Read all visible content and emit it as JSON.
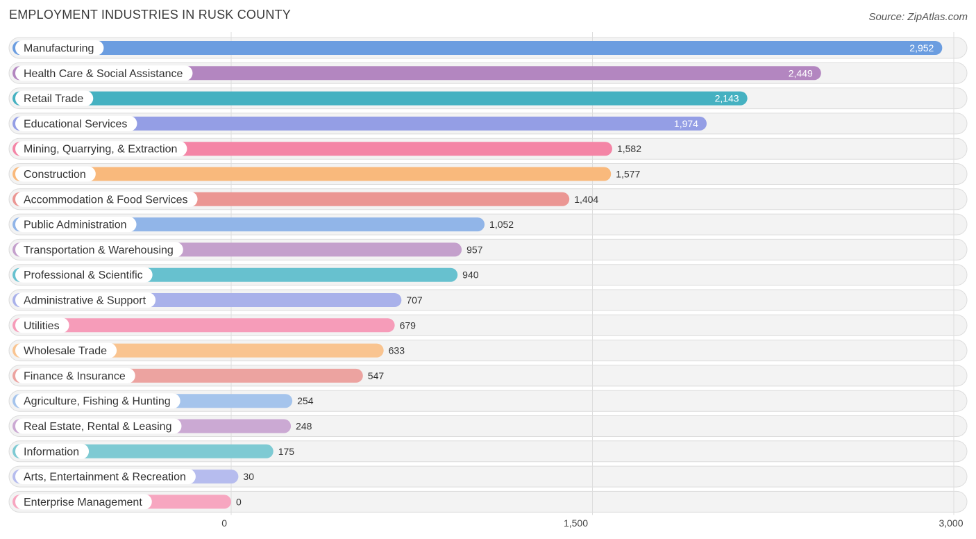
{
  "header": {
    "title": "EMPLOYMENT INDUSTRIES IN RUSK COUNTY",
    "source": "Source: ZipAtlas.com"
  },
  "chart_data": {
    "type": "bar",
    "orientation": "horizontal",
    "title": "EMPLOYMENT INDUSTRIES IN RUSK COUNTY",
    "xlabel": "",
    "ylabel": "",
    "xlim": [
      0,
      3000
    ],
    "ticks": [
      {
        "value": 0,
        "label": "0"
      },
      {
        "value": 1500,
        "label": "1,500"
      },
      {
        "value": 3000,
        "label": "3,000"
      }
    ],
    "grid": true,
    "categories": [
      "Manufacturing",
      "Health Care & Social Assistance",
      "Retail Trade",
      "Educational Services",
      "Mining, Quarrying, & Extraction",
      "Construction",
      "Accommodation & Food Services",
      "Public Administration",
      "Transportation & Warehousing",
      "Professional & Scientific",
      "Administrative & Support",
      "Utilities",
      "Wholesale Trade",
      "Finance & Insurance",
      "Agriculture, Fishing & Hunting",
      "Real Estate, Rental & Leasing",
      "Information",
      "Arts, Entertainment & Recreation",
      "Enterprise Management"
    ],
    "values": [
      2952,
      2449,
      2143,
      1974,
      1582,
      1577,
      1404,
      1052,
      957,
      940,
      707,
      679,
      633,
      547,
      254,
      248,
      175,
      30,
      0
    ],
    "value_labels": [
      "2,952",
      "2,449",
      "2,143",
      "1,974",
      "1,582",
      "1,577",
      "1,404",
      "1,052",
      "957",
      "940",
      "707",
      "679",
      "633",
      "547",
      "254",
      "248",
      "175",
      "30",
      "0"
    ],
    "colors": [
      "#6b9de0",
      "#b386c0",
      "#45b1c1",
      "#949ee5",
      "#f485a6",
      "#f9b97c",
      "#eb9693",
      "#91b5e8",
      "#c4a0cc",
      "#67c1cf",
      "#a9b1ea",
      "#f69cb9",
      "#f9c490",
      "#eca3a0",
      "#a5c4ec",
      "#cba9d3",
      "#7ecad3",
      "#b6bcee",
      "#f7a6c0"
    ]
  }
}
